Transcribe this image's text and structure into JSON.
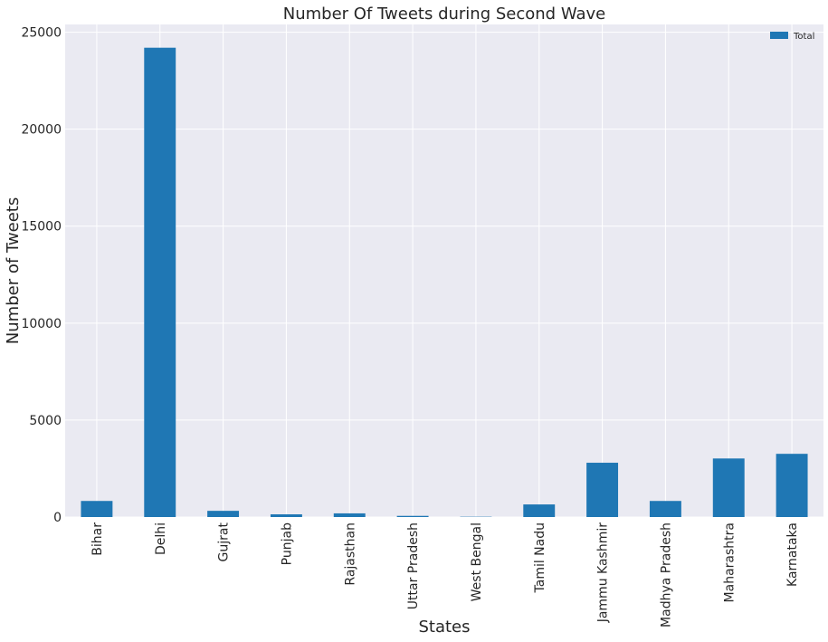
{
  "chart_data": {
    "type": "bar",
    "title": "Number Of Tweets during Second Wave",
    "xlabel": "States",
    "ylabel": "Number of Tweets",
    "categories": [
      "Bihar",
      "Delhi",
      "Gujrat",
      "Punjab",
      "Rajasthan",
      "Uttar Pradesh",
      "West Bengal",
      "Tamil Nadu",
      "Jammu Kashmir",
      "Madhya Pradesh",
      "Maharashtra",
      "Karnataka"
    ],
    "series": [
      {
        "name": "Total",
        "values": [
          830,
          24200,
          320,
          140,
          190,
          60,
          15,
          650,
          2800,
          830,
          3020,
          3260
        ]
      }
    ],
    "yticks": [
      0,
      5000,
      10000,
      15000,
      20000,
      25000
    ],
    "ylim": [
      0,
      25400
    ],
    "grid": true,
    "legend_position": "top-right",
    "bar_color": "#1f77b4",
    "background_color": "#eaeaf2"
  }
}
